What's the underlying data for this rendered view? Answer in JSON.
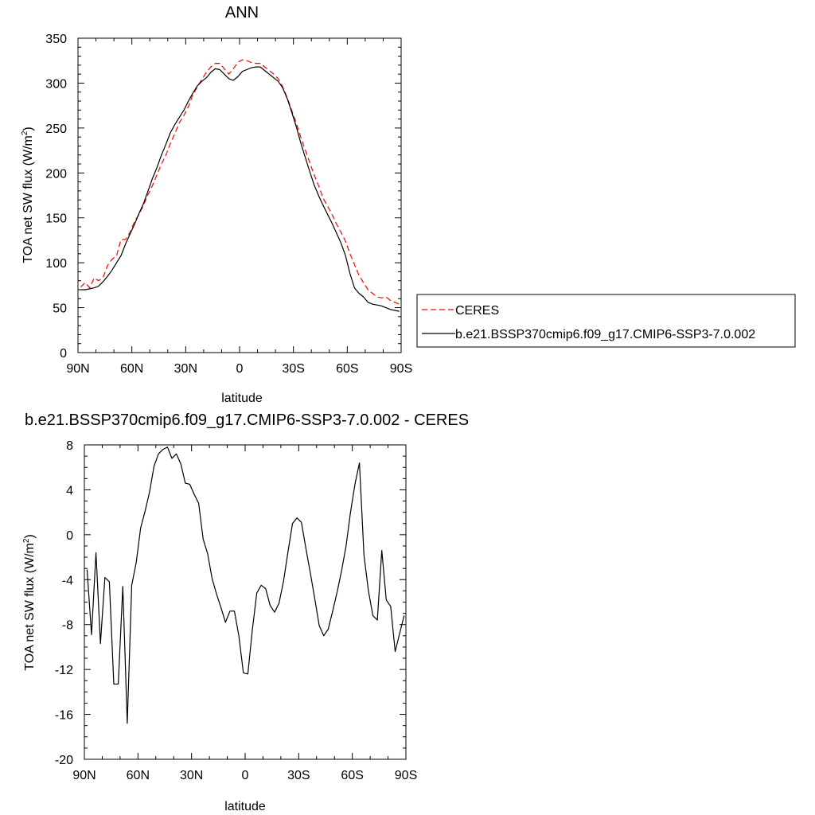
{
  "chart_data": [
    {
      "type": "line",
      "title": "ANN",
      "xlabel": "latitude",
      "ylabel": "TOA net SW flux (W/m",
      "ylabel_sup": "2",
      "ylabel_end": ")",
      "xlim": [
        90,
        -90
      ],
      "ylim": [
        0,
        350
      ],
      "x_ticks": [
        90,
        60,
        30,
        0,
        -30,
        -60,
        -90
      ],
      "x_tick_labels": [
        "90N",
        "60N",
        "30N",
        "0",
        "30S",
        "60S",
        "90S"
      ],
      "y_ticks": [
        0,
        50,
        100,
        150,
        200,
        250,
        300,
        350
      ],
      "y_tick_labels": [
        "0",
        "50",
        "100",
        "150",
        "200",
        "250",
        "300",
        "350"
      ],
      "legend": {
        "position": "right",
        "entries": [
          {
            "label": "CERES",
            "color": "#ff0000",
            "dash": "dashed"
          },
          {
            "label": "b.e21.BSSP370cmip6.f09_g17.CMIP6-SSP3-7.0.002",
            "color": "#000000",
            "dash": "solid"
          }
        ]
      },
      "series": [
        {
          "name": "CERES",
          "color": "#ff0000",
          "dash": "dashed",
          "x": [
            88.5,
            86,
            83.5,
            81,
            78.5,
            76,
            73.5,
            71,
            68.5,
            66,
            63.5,
            61,
            58.5,
            56,
            53.5,
            51,
            48.5,
            46,
            43.5,
            41,
            38.5,
            36,
            33.5,
            31,
            28.5,
            26,
            23.5,
            21,
            18.5,
            16,
            13.5,
            11,
            8.5,
            6,
            3.5,
            1,
            -1.5,
            -4,
            -6.5,
            -9,
            -11.5,
            -14,
            -16.5,
            -19,
            -21.5,
            -24,
            -26.5,
            -29,
            -31.5,
            -34,
            -36.5,
            -39,
            -41.5,
            -44,
            -46.5,
            -49,
            -51.5,
            -54,
            -56.5,
            -59,
            -61.5,
            -64,
            -66.5,
            -69,
            -71.5,
            -74,
            -76.5,
            -79,
            -81.5,
            -84,
            -86.5,
            -89
          ],
          "y": [
            73,
            78,
            72,
            83,
            80,
            84,
            97,
            104,
            108,
            126,
            126,
            134,
            146,
            154,
            164,
            176,
            186,
            198,
            210,
            220,
            233,
            244,
            256,
            264,
            274,
            287,
            296,
            304,
            312,
            318,
            322,
            322,
            316,
            310,
            316,
            323,
            326,
            325,
            323,
            322,
            322,
            318,
            314,
            310,
            305,
            296,
            284,
            270,
            256,
            240,
            226,
            212,
            198,
            186,
            172,
            163,
            154,
            143,
            134,
            124,
            110,
            98,
            86,
            78,
            70,
            66,
            62,
            61,
            62,
            58,
            56,
            54
          ]
        },
        {
          "name": "b.e21.BSSP370cmip6.f09_g17.CMIP6-SSP3-7.0.002",
          "color": "#000000",
          "dash": "solid",
          "x": [
            88.5,
            86,
            83.5,
            81,
            78.5,
            76,
            73.5,
            71,
            68.5,
            66,
            63.5,
            61,
            58.5,
            56,
            53.5,
            51,
            48.5,
            46,
            43.5,
            41,
            38.5,
            36,
            33.5,
            31,
            28.5,
            26,
            23.5,
            21,
            18.5,
            16,
            13.5,
            11,
            8.5,
            6,
            3.5,
            1,
            -1.5,
            -4,
            -6.5,
            -9,
            -11.5,
            -14,
            -16.5,
            -19,
            -21.5,
            -24,
            -26.5,
            -29,
            -31.5,
            -34,
            -36.5,
            -39,
            -41.5,
            -44,
            -46.5,
            -49,
            -51.5,
            -54,
            -56.5,
            -59,
            -61.5,
            -64,
            -66.5,
            -69,
            -71.5,
            -74,
            -76.5,
            -79,
            -81.5,
            -84,
            -86.5,
            -89
          ],
          "y": [
            70,
            70,
            71,
            72,
            74,
            79,
            85,
            92,
            100,
            108,
            121,
            132,
            143,
            155,
            166,
            180,
            194,
            206,
            220,
            232,
            245,
            254,
            262,
            270,
            280,
            289,
            297,
            302,
            306,
            312,
            316,
            315,
            310,
            305,
            303,
            307,
            313,
            315,
            317,
            318,
            318,
            314,
            310,
            306,
            302,
            295,
            283,
            268,
            252,
            234,
            218,
            202,
            187,
            175,
            164,
            154,
            144,
            133,
            122,
            108,
            88,
            72,
            66,
            62,
            56,
            54,
            53,
            52,
            50,
            48,
            47,
            46
          ]
        }
      ]
    },
    {
      "type": "line",
      "title": "b.e21.BSSP370cmip6.f09_g17.CMIP6-SSP3-7.0.002 - CERES",
      "xlabel": "latitude",
      "ylabel": "TOA net SW flux (W/m",
      "ylabel_sup": "2",
      "ylabel_end": ")",
      "xlim": [
        90,
        -90
      ],
      "ylim": [
        -20,
        8
      ],
      "x_ticks": [
        90,
        60,
        30,
        0,
        -30,
        -60,
        -90
      ],
      "x_tick_labels": [
        "90N",
        "60N",
        "30N",
        "0",
        "30S",
        "60S",
        "90S"
      ],
      "y_ticks": [
        -20,
        -16,
        -12,
        -8,
        -4,
        0,
        4,
        8
      ],
      "y_tick_labels": [
        "-20",
        "-16",
        "-12",
        "-8",
        "-4",
        "0",
        "4",
        "8"
      ],
      "series": [
        {
          "color": "#000000",
          "dash": "solid",
          "x": [
            88.5,
            86,
            83.5,
            81,
            78.5,
            76,
            73.5,
            71,
            68.5,
            66,
            63.5,
            61,
            58.5,
            56,
            53.5,
            51,
            48.5,
            46,
            43.5,
            41,
            38.5,
            36,
            33.5,
            31,
            28.5,
            26,
            23.5,
            21,
            18.5,
            16,
            13.5,
            11,
            8.5,
            6,
            3.5,
            1,
            -1.5,
            -4,
            -6.5,
            -9,
            -11.5,
            -14,
            -16.5,
            -19,
            -21.5,
            -24,
            -26.5,
            -29,
            -31.5,
            -34,
            -36.5,
            -39,
            -41.5,
            -44,
            -46.5,
            -49,
            -51.5,
            -54,
            -56.5,
            -59,
            -61.5,
            -64,
            -66.5,
            -69,
            -71.5,
            -74,
            -76.5,
            -79,
            -81.5,
            -84,
            -86.5,
            -89
          ],
          "y": [
            -3.1,
            -8.9,
            -1.6,
            -9.7,
            -3.8,
            -4.2,
            -13.3,
            -13.3,
            -4.6,
            -16.8,
            -4.5,
            -2.5,
            0.6,
            2.1,
            3.8,
            6.1,
            7.2,
            7.6,
            7.8,
            6.8,
            7.2,
            6.3,
            4.6,
            4.5,
            3.6,
            2.8,
            -0.4,
            -1.7,
            -3.9,
            -5.3,
            -6.5,
            -7.8,
            -6.8,
            -6.8,
            -9,
            -12.3,
            -12.4,
            -8.5,
            -5.2,
            -4.5,
            -4.8,
            -6.3,
            -6.9,
            -6.1,
            -4.1,
            -1.5,
            1,
            1.5,
            1.1,
            -1.2,
            -3.4,
            -5.7,
            -8.1,
            -9,
            -8.4,
            -6.8,
            -5.1,
            -3.2,
            -1,
            2,
            4.5,
            6.4,
            -1.8,
            -5,
            -7.2,
            -7.6,
            -1.4,
            -5.8,
            -6.4,
            -10.4,
            -8.8,
            -7.2
          ]
        }
      ]
    }
  ]
}
